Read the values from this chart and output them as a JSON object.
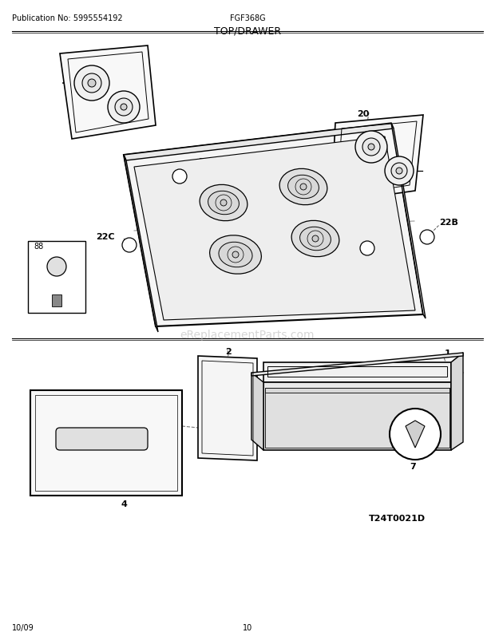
{
  "title": "TOP/DRAWER",
  "pub_no": "Publication No: 5995554192",
  "model": "FGF368G",
  "date": "10/09",
  "page": "10",
  "diagram_id": "T24T0021D",
  "bg_color": "#ffffff",
  "text_color": "#000000",
  "fig_width": 6.2,
  "fig_height": 8.03,
  "watermark": "eReplacementParts.com",
  "watermark_color": "#bbbbbb"
}
